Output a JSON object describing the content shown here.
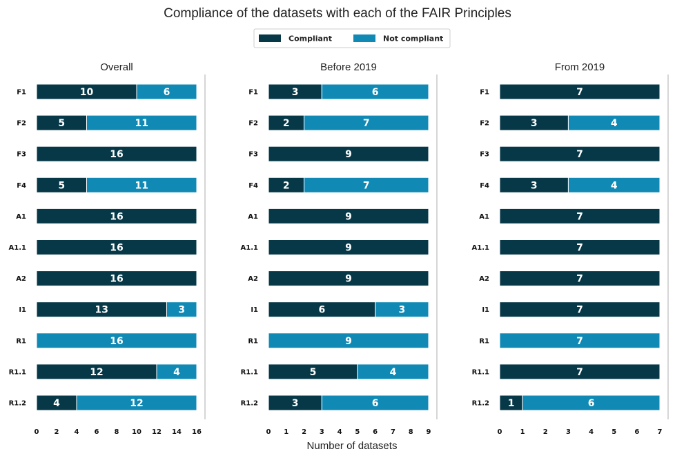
{
  "title": "Compliance of the datasets with each of the FAIR Principles",
  "xlabel": "Number of datasets",
  "legend": {
    "placement": "top-center",
    "items": [
      {
        "label": "Compliant",
        "color": "#063848"
      },
      {
        "label": "Not compliant",
        "color": "#108ab5"
      }
    ]
  },
  "chart_data": [
    {
      "type": "bar",
      "orientation": "horizontal",
      "stacked": true,
      "title": "Overall",
      "categories": [
        "F1",
        "F2",
        "F3",
        "F4",
        "A1",
        "A1.1",
        "A2",
        "I1",
        "R1",
        "R1.1",
        "R1.2"
      ],
      "series": [
        {
          "name": "Compliant",
          "values": [
            10,
            5,
            16,
            5,
            16,
            16,
            16,
            13,
            0,
            12,
            4
          ]
        },
        {
          "name": "Not compliant",
          "values": [
            6,
            11,
            0,
            11,
            0,
            0,
            0,
            3,
            16,
            4,
            12
          ]
        }
      ],
      "xlim": [
        0,
        16
      ],
      "xticks": [
        0,
        2,
        4,
        6,
        8,
        10,
        12,
        14,
        16
      ]
    },
    {
      "type": "bar",
      "orientation": "horizontal",
      "stacked": true,
      "title": "Before 2019",
      "categories": [
        "F1",
        "F2",
        "F3",
        "F4",
        "A1",
        "A1.1",
        "A2",
        "I1",
        "R1",
        "R1.1",
        "R1.2"
      ],
      "series": [
        {
          "name": "Compliant",
          "values": [
            3,
            2,
            9,
            2,
            9,
            9,
            9,
            6,
            0,
            5,
            3
          ]
        },
        {
          "name": "Not compliant",
          "values": [
            6,
            7,
            0,
            7,
            0,
            0,
            0,
            3,
            9,
            4,
            6
          ]
        }
      ],
      "xlim": [
        0,
        9
      ],
      "xticks": [
        0,
        1,
        2,
        3,
        4,
        5,
        6,
        7,
        8,
        9
      ]
    },
    {
      "type": "bar",
      "orientation": "horizontal",
      "stacked": true,
      "title": "From 2019",
      "categories": [
        "F1",
        "F2",
        "F3",
        "F4",
        "A1",
        "A1.1",
        "A2",
        "I1",
        "R1",
        "R1.1",
        "R1.2"
      ],
      "series": [
        {
          "name": "Compliant",
          "values": [
            7,
            3,
            7,
            3,
            7,
            7,
            7,
            7,
            0,
            7,
            1
          ]
        },
        {
          "name": "Not compliant",
          "values": [
            0,
            4,
            0,
            4,
            0,
            0,
            0,
            0,
            7,
            0,
            6
          ]
        }
      ],
      "xlim": [
        0,
        7
      ],
      "xticks": [
        0,
        1,
        2,
        3,
        4,
        5,
        6,
        7
      ]
    }
  ]
}
